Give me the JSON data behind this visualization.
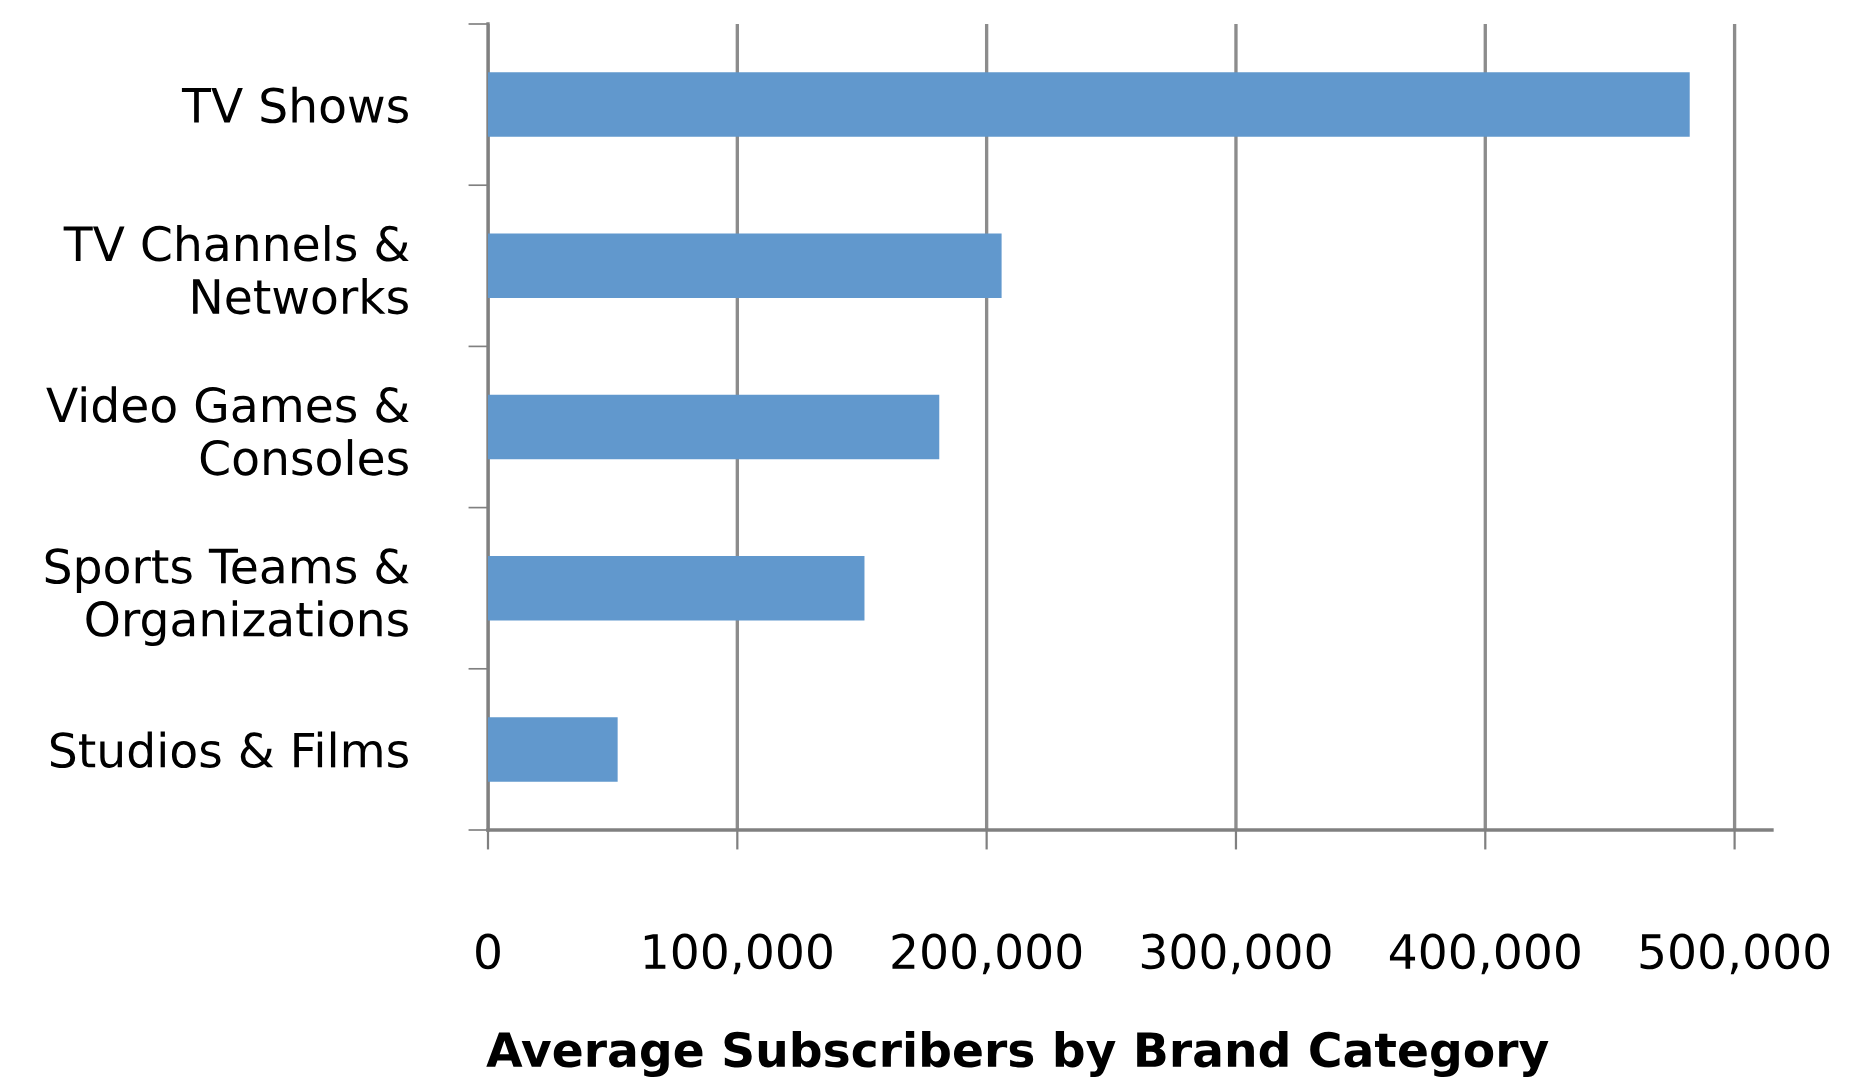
{
  "chart_data": {
    "type": "bar",
    "orientation": "horizontal",
    "title": "Average Subscribers by Brand Category",
    "categories": [
      "TV Shows",
      "TV Channels &\nNetworks",
      "Video Games &\nConsoles",
      "Sports Teams &\nOrganizations",
      "Studios & Films"
    ],
    "values": [
      482000,
      206000,
      181000,
      151000,
      52000
    ],
    "color": "#6198cd",
    "xlim": [
      0,
      515000
    ],
    "xticks": [
      {
        "value": 0,
        "label": "0"
      },
      {
        "value": 100000,
        "label": "100,000"
      },
      {
        "value": 200000,
        "label": "200,000"
      },
      {
        "value": 300000,
        "label": "300,000"
      },
      {
        "value": 400000,
        "label": "400,000"
      },
      {
        "value": 500000,
        "label": "500,000"
      }
    ],
    "grid": "x",
    "legend": false
  }
}
